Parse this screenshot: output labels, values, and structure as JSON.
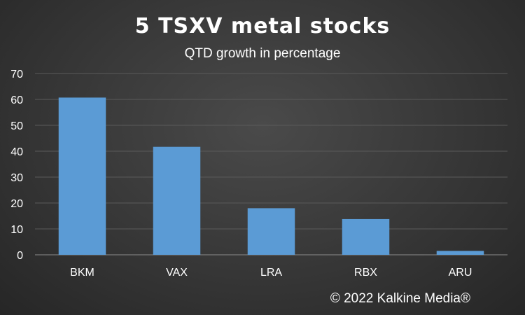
{
  "chart_data": {
    "type": "bar",
    "title": "5 TSXV metal stocks",
    "subtitle": "QTD growth in percentage",
    "categories": [
      "BKM",
      "VAX",
      "LRA",
      "RBX",
      "ARU"
    ],
    "series": [
      {
        "values": [
          60.7,
          41.7,
          18.0,
          13.8,
          1.5
        ]
      }
    ],
    "ylim": [
      0,
      70
    ],
    "yticks": [
      0,
      10,
      20,
      30,
      40,
      50,
      60,
      70
    ],
    "grid": true,
    "legend": "none",
    "bar_color": "#5b9bd5"
  },
  "footer": {
    "copyright": "© 2022 Kalkine Media®"
  }
}
